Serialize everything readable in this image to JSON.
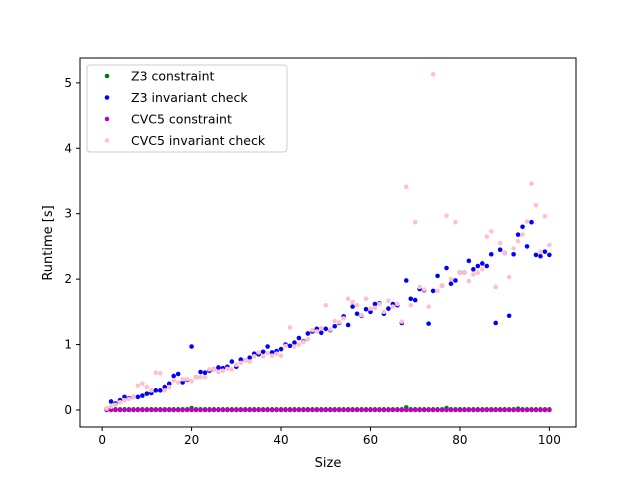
{
  "chart_data": {
    "type": "scatter",
    "title": "",
    "xlabel": "Size",
    "ylabel": "Runtime [s]",
    "xlim": [
      -4.95,
      105.95
    ],
    "ylim": [
      -0.26,
      5.38
    ],
    "xticks": [
      0,
      20,
      40,
      60,
      80,
      100
    ],
    "yticks": [
      0,
      1,
      2,
      3,
      4,
      5
    ],
    "grid": false,
    "legend_position": "upper-left",
    "series": [
      {
        "name": "Z3 constraint",
        "color": "#008000",
        "x": [
          1,
          2,
          3,
          4,
          5,
          6,
          7,
          8,
          9,
          10,
          11,
          12,
          13,
          14,
          15,
          16,
          17,
          18,
          19,
          20,
          21,
          22,
          23,
          24,
          25,
          26,
          27,
          28,
          29,
          30,
          31,
          32,
          33,
          34,
          35,
          36,
          37,
          38,
          39,
          40,
          41,
          42,
          43,
          44,
          45,
          46,
          47,
          48,
          49,
          50,
          51,
          52,
          53,
          54,
          55,
          56,
          57,
          58,
          59,
          60,
          61,
          62,
          63,
          64,
          65,
          66,
          67,
          68,
          69,
          70,
          71,
          72,
          73,
          74,
          75,
          76,
          77,
          78,
          79,
          80,
          81,
          82,
          83,
          84,
          85,
          86,
          87,
          88,
          89,
          90,
          91,
          92,
          93,
          94,
          95,
          96,
          97,
          98,
          99,
          100
        ],
        "y": [
          0.01,
          0.01,
          0.01,
          0.01,
          0.01,
          0.01,
          0.01,
          0.01,
          0.01,
          0.01,
          0.01,
          0.01,
          0.01,
          0.01,
          0.01,
          0.01,
          0.01,
          0.01,
          0.01,
          0.03,
          0.01,
          0.01,
          0.01,
          0.01,
          0.01,
          0.01,
          0.01,
          0.01,
          0.01,
          0.01,
          0.01,
          0.01,
          0.01,
          0.01,
          0.01,
          0.01,
          0.01,
          0.01,
          0.01,
          0.01,
          0.01,
          0.01,
          0.01,
          0.01,
          0.01,
          0.01,
          0.01,
          0.01,
          0.01,
          0.01,
          0.01,
          0.01,
          0.01,
          0.01,
          0.01,
          0.01,
          0.01,
          0.01,
          0.01,
          0.01,
          0.01,
          0.01,
          0.01,
          0.01,
          0.01,
          0.01,
          0.01,
          0.04,
          0.01,
          0.01,
          0.01,
          0.01,
          0.01,
          0.01,
          0.01,
          0.01,
          0.03,
          0.01,
          0.01,
          0.01,
          0.01,
          0.01,
          0.01,
          0.01,
          0.01,
          0.01,
          0.01,
          0.01,
          0.01,
          0.01,
          0.01,
          0.01,
          0.02,
          0.01,
          0.01,
          0.01,
          0.01,
          0.01,
          0.01,
          0.01
        ]
      },
      {
        "name": "Z3 invariant check",
        "color": "#0000ff",
        "x": [
          1,
          2,
          3,
          4,
          5,
          6,
          7,
          8,
          9,
          10,
          11,
          12,
          13,
          14,
          15,
          16,
          17,
          18,
          19,
          20,
          21,
          22,
          23,
          24,
          25,
          26,
          27,
          28,
          29,
          30,
          31,
          32,
          33,
          34,
          35,
          36,
          37,
          38,
          39,
          40,
          41,
          42,
          43,
          44,
          45,
          46,
          47,
          48,
          49,
          50,
          51,
          52,
          53,
          54,
          55,
          56,
          57,
          58,
          59,
          60,
          61,
          62,
          63,
          64,
          65,
          66,
          67,
          68,
          69,
          70,
          71,
          72,
          73,
          74,
          75,
          76,
          77,
          78,
          79,
          80,
          81,
          82,
          83,
          84,
          85,
          86,
          87,
          88,
          89,
          90,
          91,
          92,
          93,
          94,
          95,
          96,
          97,
          98,
          99,
          100
        ],
        "y": [
          0.02,
          0.13,
          0.1,
          0.15,
          0.2,
          0.18,
          0.2,
          0.2,
          0.22,
          0.25,
          0.26,
          0.3,
          0.3,
          0.35,
          0.4,
          0.52,
          0.55,
          0.42,
          0.46,
          0.97,
          0.5,
          0.58,
          0.57,
          0.6,
          0.62,
          0.65,
          0.64,
          0.66,
          0.74,
          0.66,
          0.77,
          0.76,
          0.8,
          0.86,
          0.85,
          0.89,
          0.97,
          0.88,
          0.9,
          0.93,
          1.0,
          0.98,
          1.03,
          1.1,
          1.05,
          1.17,
          1.2,
          1.24,
          1.18,
          1.24,
          1.22,
          1.28,
          1.33,
          1.43,
          1.3,
          1.58,
          1.47,
          1.44,
          1.54,
          1.5,
          1.62,
          1.63,
          1.47,
          1.55,
          1.62,
          1.6,
          1.33,
          1.98,
          1.7,
          1.68,
          1.85,
          1.83,
          1.32,
          1.82,
          2.05,
          1.9,
          2.17,
          1.93,
          1.98,
          2.1,
          2.1,
          2.28,
          2.15,
          2.2,
          2.24,
          2.2,
          2.38,
          1.33,
          2.45,
          2.4,
          1.44,
          2.38,
          2.68,
          2.8,
          2.5,
          2.87,
          2.37,
          2.35,
          2.42,
          2.37
        ]
      },
      {
        "name": "CVC5 constraint",
        "color": "#bf00bf",
        "x": [
          1,
          2,
          3,
          4,
          5,
          6,
          7,
          8,
          9,
          10,
          11,
          12,
          13,
          14,
          15,
          16,
          17,
          18,
          19,
          20,
          21,
          22,
          23,
          24,
          25,
          26,
          27,
          28,
          29,
          30,
          31,
          32,
          33,
          34,
          35,
          36,
          37,
          38,
          39,
          40,
          41,
          42,
          43,
          44,
          45,
          46,
          47,
          48,
          49,
          50,
          51,
          52,
          53,
          54,
          55,
          56,
          57,
          58,
          59,
          60,
          61,
          62,
          63,
          64,
          65,
          66,
          67,
          68,
          69,
          70,
          71,
          72,
          73,
          74,
          75,
          76,
          77,
          78,
          79,
          80,
          81,
          82,
          83,
          84,
          85,
          86,
          87,
          88,
          89,
          90,
          91,
          92,
          93,
          94,
          95,
          96,
          97,
          98,
          99,
          100
        ],
        "y": [
          0.0,
          0.0,
          0.0,
          0.0,
          0.0,
          0.0,
          0.0,
          0.0,
          0.0,
          0.0,
          0.0,
          0.0,
          0.0,
          0.0,
          0.0,
          0.0,
          0.0,
          0.0,
          0.0,
          0.0,
          0.0,
          0.0,
          0.0,
          0.0,
          0.0,
          0.0,
          0.0,
          0.0,
          0.0,
          0.0,
          0.0,
          0.0,
          0.0,
          0.0,
          0.0,
          0.0,
          0.0,
          0.0,
          0.0,
          0.0,
          0.0,
          0.0,
          0.0,
          0.0,
          0.0,
          0.0,
          0.0,
          0.0,
          0.0,
          0.0,
          0.0,
          0.0,
          0.0,
          0.0,
          0.0,
          0.0,
          0.0,
          0.0,
          0.0,
          0.0,
          0.0,
          0.0,
          0.0,
          0.0,
          0.0,
          0.0,
          0.0,
          0.0,
          0.0,
          0.0,
          0.0,
          0.0,
          0.0,
          0.0,
          0.0,
          0.0,
          0.0,
          0.0,
          0.0,
          0.0,
          0.0,
          0.0,
          0.0,
          0.0,
          0.0,
          0.0,
          0.0,
          0.0,
          0.0,
          0.0,
          0.0,
          0.0,
          0.0,
          0.0,
          0.0,
          0.0,
          0.0,
          0.0,
          0.0,
          0.0
        ]
      },
      {
        "name": "CVC5 invariant check",
        "color": "#ffc0cb",
        "x": [
          1,
          2,
          3,
          4,
          5,
          6,
          7,
          8,
          9,
          10,
          11,
          12,
          13,
          14,
          15,
          16,
          17,
          18,
          19,
          20,
          21,
          22,
          23,
          24,
          25,
          26,
          27,
          28,
          29,
          30,
          31,
          32,
          33,
          34,
          35,
          36,
          37,
          38,
          39,
          40,
          41,
          42,
          43,
          44,
          45,
          46,
          47,
          48,
          49,
          50,
          51,
          52,
          53,
          54,
          55,
          56,
          57,
          58,
          59,
          60,
          61,
          62,
          63,
          64,
          65,
          66,
          67,
          68,
          69,
          70,
          71,
          72,
          73,
          74,
          75,
          76,
          77,
          78,
          79,
          80,
          81,
          82,
          83,
          84,
          85,
          86,
          87,
          88,
          89,
          90,
          91,
          92,
          93,
          94,
          95,
          96,
          97,
          98,
          99,
          100
        ],
        "y": [
          0.02,
          0.05,
          0.08,
          0.12,
          0.15,
          0.17,
          0.2,
          0.37,
          0.4,
          0.35,
          0.3,
          0.57,
          0.56,
          0.3,
          0.35,
          0.45,
          0.42,
          0.47,
          0.47,
          0.44,
          0.5,
          0.5,
          0.5,
          0.62,
          0.62,
          0.58,
          0.6,
          0.63,
          0.62,
          0.69,
          0.72,
          0.76,
          0.74,
          0.82,
          0.88,
          0.82,
          0.87,
          0.83,
          0.86,
          0.83,
          0.98,
          1.26,
          0.97,
          1.0,
          1.04,
          1.08,
          1.22,
          1.2,
          1.25,
          1.6,
          1.23,
          1.36,
          1.34,
          1.4,
          1.7,
          1.65,
          1.6,
          1.45,
          1.7,
          1.55,
          1.56,
          1.62,
          1.5,
          1.67,
          1.58,
          1.62,
          1.35,
          3.41,
          1.6,
          2.87,
          1.88,
          1.84,
          1.58,
          5.13,
          1.82,
          1.9,
          2.97,
          2.0,
          2.87,
          2.1,
          2.1,
          1.97,
          2.07,
          2.1,
          2.15,
          2.65,
          2.73,
          1.88,
          2.55,
          2.4,
          2.03,
          2.47,
          2.58,
          2.68,
          2.88,
          3.46,
          3.13,
          2.42,
          2.96,
          2.52
        ]
      }
    ]
  }
}
